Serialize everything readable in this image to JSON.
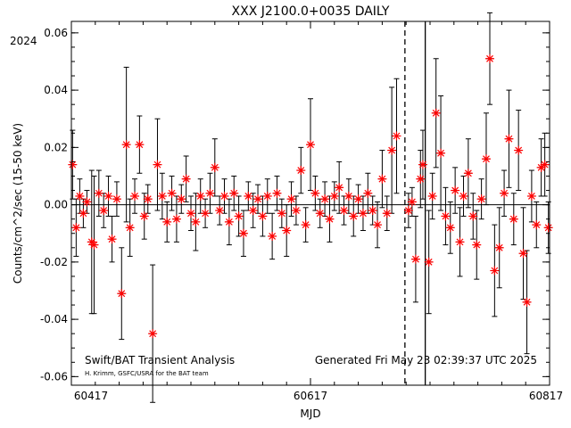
{
  "chart_data": {
    "type": "scatter",
    "title": "XXX J2100.0+0035 DAILY",
    "year_label": "2024",
    "xlabel": "MJD",
    "ylabel": "Counts/cm^2/sec (15-50 keV)",
    "xlim": [
      60417,
      60817
    ],
    "ylim": [
      -0.063,
      0.064
    ],
    "x_ticks": [
      60417,
      60617,
      60817
    ],
    "y_ticks": [
      -0.06,
      -0.04,
      -0.02,
      0.0,
      0.02,
      0.04,
      0.06
    ],
    "y_tick_labels": [
      "-0.06",
      "-0.04",
      "-0.02",
      "0.00",
      "0.02",
      "0.04",
      "0.06"
    ],
    "vertical_lines": [
      {
        "x": 60696,
        "style": "dashed"
      },
      {
        "x": 60713,
        "style": "solid"
      }
    ],
    "zero_line": 0.0,
    "series": [
      {
        "marker": "asterisk",
        "color": "#ff0000",
        "errorbar_color": "#000000",
        "points": [
          {
            "x": 60418,
            "y": 0.014,
            "err": 0.012
          },
          {
            "x": 60421,
            "y": -0.008,
            "err": 0.01
          },
          {
            "x": 60424,
            "y": 0.003,
            "err": 0.006
          },
          {
            "x": 60427,
            "y": -0.003,
            "err": 0.005
          },
          {
            "x": 60430,
            "y": 0.001,
            "err": 0.004
          },
          {
            "x": 60434,
            "y": -0.013,
            "err": 0.025
          },
          {
            "x": 60436,
            "y": -0.014,
            "err": 0.024
          },
          {
            "x": 60440,
            "y": 0.004,
            "err": 0.008
          },
          {
            "x": 60444,
            "y": -0.002,
            "err": 0.006
          },
          {
            "x": 60448,
            "y": 0.003,
            "err": 0.007
          },
          {
            "x": 60451,
            "y": -0.012,
            "err": 0.008
          },
          {
            "x": 60455,
            "y": 0.002,
            "err": 0.006
          },
          {
            "x": 60459,
            "y": -0.031,
            "err": 0.016
          },
          {
            "x": 60463,
            "y": 0.021,
            "err": 0.027
          },
          {
            "x": 60466,
            "y": -0.008,
            "err": 0.01
          },
          {
            "x": 60470,
            "y": 0.003,
            "err": 0.006
          },
          {
            "x": 60474,
            "y": 0.021,
            "err": 0.01
          },
          {
            "x": 60478,
            "y": -0.004,
            "err": 0.008
          },
          {
            "x": 60481,
            "y": 0.002,
            "err": 0.005
          },
          {
            "x": 60485,
            "y": -0.045,
            "err": 0.024
          },
          {
            "x": 60489,
            "y": 0.014,
            "err": 0.016
          },
          {
            "x": 60493,
            "y": 0.003,
            "err": 0.008
          },
          {
            "x": 60497,
            "y": -0.006,
            "err": 0.007
          },
          {
            "x": 60501,
            "y": 0.004,
            "err": 0.006
          },
          {
            "x": 60505,
            "y": -0.005,
            "err": 0.008
          },
          {
            "x": 60509,
            "y": 0.002,
            "err": 0.005
          },
          {
            "x": 60513,
            "y": 0.009,
            "err": 0.008
          },
          {
            "x": 60517,
            "y": -0.003,
            "err": 0.006
          },
          {
            "x": 60521,
            "y": -0.006,
            "err": 0.01
          },
          {
            "x": 60525,
            "y": 0.003,
            "err": 0.006
          },
          {
            "x": 60529,
            "y": -0.003,
            "err": 0.005
          },
          {
            "x": 60533,
            "y": 0.004,
            "err": 0.007
          },
          {
            "x": 60537,
            "y": 0.013,
            "err": 0.01
          },
          {
            "x": 60541,
            "y": -0.002,
            "err": 0.005
          },
          {
            "x": 60545,
            "y": 0.003,
            "err": 0.006
          },
          {
            "x": 60549,
            "y": -0.006,
            "err": 0.008
          },
          {
            "x": 60553,
            "y": 0.004,
            "err": 0.006
          },
          {
            "x": 60557,
            "y": -0.004,
            "err": 0.007
          },
          {
            "x": 60561,
            "y": -0.01,
            "err": 0.008
          },
          {
            "x": 60565,
            "y": 0.003,
            "err": 0.005
          },
          {
            "x": 60569,
            "y": -0.002,
            "err": 0.006
          },
          {
            "x": 60573,
            "y": 0.002,
            "err": 0.005
          },
          {
            "x": 60577,
            "y": -0.004,
            "err": 0.007
          },
          {
            "x": 60581,
            "y": 0.003,
            "err": 0.006
          },
          {
            "x": 60585,
            "y": -0.011,
            "err": 0.008
          },
          {
            "x": 60589,
            "y": 0.004,
            "err": 0.006
          },
          {
            "x": 60593,
            "y": -0.003,
            "err": 0.005
          },
          {
            "x": 60597,
            "y": -0.009,
            "err": 0.009
          },
          {
            "x": 60601,
            "y": 0.002,
            "err": 0.006
          },
          {
            "x": 60605,
            "y": -0.002,
            "err": 0.005
          },
          {
            "x": 60609,
            "y": 0.012,
            "err": 0.008
          },
          {
            "x": 60613,
            "y": -0.007,
            "err": 0.006
          },
          {
            "x": 60617,
            "y": 0.021,
            "err": 0.016
          },
          {
            "x": 60621,
            "y": 0.004,
            "err": 0.006
          },
          {
            "x": 60625,
            "y": -0.003,
            "err": 0.005
          },
          {
            "x": 60629,
            "y": 0.002,
            "err": 0.006
          },
          {
            "x": 60633,
            "y": -0.005,
            "err": 0.008
          },
          {
            "x": 60637,
            "y": 0.003,
            "err": 0.005
          },
          {
            "x": 60641,
            "y": 0.006,
            "err": 0.009
          },
          {
            "x": 60645,
            "y": -0.002,
            "err": 0.005
          },
          {
            "x": 60649,
            "y": 0.003,
            "err": 0.006
          },
          {
            "x": 60653,
            "y": -0.004,
            "err": 0.007
          },
          {
            "x": 60657,
            "y": 0.002,
            "err": 0.005
          },
          {
            "x": 60661,
            "y": -0.003,
            "err": 0.006
          },
          {
            "x": 60665,
            "y": 0.004,
            "err": 0.007
          },
          {
            "x": 60669,
            "y": -0.002,
            "err": 0.005
          },
          {
            "x": 60673,
            "y": -0.007,
            "err": 0.008
          },
          {
            "x": 60677,
            "y": 0.009,
            "err": 0.01
          },
          {
            "x": 60681,
            "y": -0.003,
            "err": 0.006
          },
          {
            "x": 60685,
            "y": 0.019,
            "err": 0.022
          },
          {
            "x": 60689,
            "y": 0.024,
            "err": 0.02
          },
          {
            "x": 60699,
            "y": -0.002,
            "err": 0.006
          },
          {
            "x": 60702,
            "y": 0.001,
            "err": 0.005
          },
          {
            "x": 60705,
            "y": -0.019,
            "err": 0.015
          },
          {
            "x": 60709,
            "y": 0.009,
            "err": 0.01
          },
          {
            "x": 60711,
            "y": 0.014,
            "err": 0.012
          },
          {
            "x": 60716,
            "y": -0.02,
            "err": 0.018
          },
          {
            "x": 60719,
            "y": 0.003,
            "err": 0.008
          },
          {
            "x": 60722,
            "y": 0.032,
            "err": 0.019
          },
          {
            "x": 60726,
            "y": 0.018,
            "err": 0.02
          },
          {
            "x": 60730,
            "y": -0.004,
            "err": 0.01
          },
          {
            "x": 60734,
            "y": -0.008,
            "err": 0.009
          },
          {
            "x": 60738,
            "y": 0.005,
            "err": 0.008
          },
          {
            "x": 60742,
            "y": -0.013,
            "err": 0.012
          },
          {
            "x": 60745,
            "y": 0.003,
            "err": 0.007
          },
          {
            "x": 60749,
            "y": 0.011,
            "err": 0.012
          },
          {
            "x": 60753,
            "y": -0.004,
            "err": 0.008
          },
          {
            "x": 60756,
            "y": -0.014,
            "err": 0.012
          },
          {
            "x": 60760,
            "y": 0.002,
            "err": 0.007
          },
          {
            "x": 60764,
            "y": 0.016,
            "err": 0.016
          },
          {
            "x": 60767,
            "y": 0.051,
            "err": 0.016
          },
          {
            "x": 60771,
            "y": -0.023,
            "err": 0.016
          },
          {
            "x": 60775,
            "y": -0.015,
            "err": 0.014
          },
          {
            "x": 60779,
            "y": 0.004,
            "err": 0.008
          },
          {
            "x": 60783,
            "y": 0.023,
            "err": 0.017
          },
          {
            "x": 60787,
            "y": -0.005,
            "err": 0.009
          },
          {
            "x": 60791,
            "y": 0.019,
            "err": 0.014
          },
          {
            "x": 60795,
            "y": -0.017,
            "err": 0.016
          },
          {
            "x": 60798,
            "y": -0.034,
            "err": 0.018
          },
          {
            "x": 60802,
            "y": 0.003,
            "err": 0.009
          },
          {
            "x": 60806,
            "y": -0.007,
            "err": 0.008
          },
          {
            "x": 60810,
            "y": 0.013,
            "err": 0.01
          },
          {
            "x": 60813,
            "y": 0.014,
            "err": 0.011
          },
          {
            "x": 60816,
            "y": -0.008,
            "err": 0.009
          }
        ]
      }
    ]
  },
  "footer": {
    "analysis_label": "Swift/BAT Transient Analysis",
    "credit_label": "H. Krimm, GSFC/USRA for the BAT team",
    "generated_label": "Generated Fri May 23 02:39:37 UTC 2025"
  }
}
